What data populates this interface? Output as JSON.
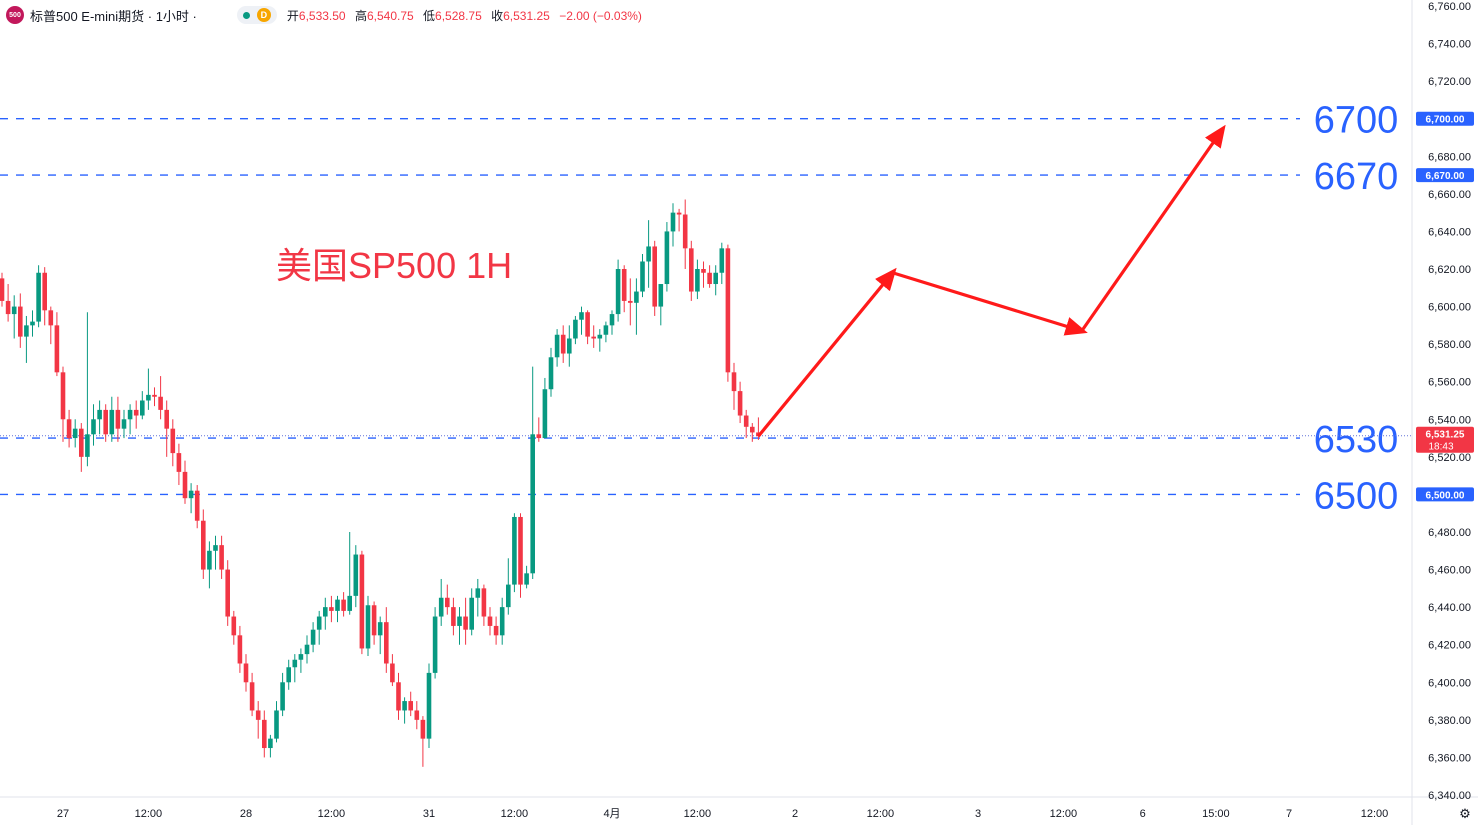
{
  "header": {
    "logo_text": "500",
    "symbol": "标普500 E-mini期货 · 1小时 ·",
    "mode_badge": "D",
    "open_label": "开",
    "open": "6,533.50",
    "high_label": "高",
    "high": "6,540.75",
    "low_label": "低",
    "low": "6,528.75",
    "close_label": "收",
    "close": "6,531.25",
    "change": "−2.00 (−0.03%)"
  },
  "colors": {
    "up": "#089981",
    "down": "#f23645",
    "level": "#2962ff",
    "annotation": "#f23645",
    "arrow": "#ff1a1a",
    "current_line": "#6272d8"
  },
  "chart_data": {
    "type": "candlestick",
    "title": "美国SP500 1H",
    "ylim": [
      6340,
      6760
    ],
    "y_ticks": [
      "6,340.00",
      "6,360.00",
      "6,380.00",
      "6,400.00",
      "6,420.00",
      "6,440.00",
      "6,460.00",
      "6,480.00",
      "6,500.00",
      "6,520.00",
      "6,540.00",
      "6,560.00",
      "6,580.00",
      "6,600.00",
      "6,620.00",
      "6,640.00",
      "6,660.00",
      "6,680.00",
      "6,700.00",
      "6,720.00",
      "6,740.00",
      "6,760.00"
    ],
    "x_ticks": [
      {
        "label": "27",
        "slot": 10
      },
      {
        "label": "12:00",
        "slot": 24
      },
      {
        "label": "28",
        "slot": 40
      },
      {
        "label": "12:00",
        "slot": 54
      },
      {
        "label": "31",
        "slot": 70
      },
      {
        "label": "12:00",
        "slot": 84
      },
      {
        "label": "4月",
        "slot": 100
      },
      {
        "label": "12:00",
        "slot": 114
      },
      {
        "label": "2",
        "slot": 130
      },
      {
        "label": "12:00",
        "slot": 144
      },
      {
        "label": "3",
        "slot": 160
      },
      {
        "label": "12:00",
        "slot": 174
      },
      {
        "label": "6",
        "slot": 187
      },
      {
        "label": "15:00",
        "slot": 199
      },
      {
        "label": "7",
        "slot": 211
      },
      {
        "label": "12:00",
        "slot": 225
      }
    ],
    "candles": [
      [
        6615,
        6618,
        6600,
        6603
      ],
      [
        6603,
        6612,
        6592,
        6596
      ],
      [
        6596,
        6606,
        6583,
        6600
      ],
      [
        6600,
        6607,
        6578,
        6584
      ],
      [
        6584,
        6595,
        6570,
        6590
      ],
      [
        6590,
        6598,
        6584,
        6592
      ],
      [
        6592,
        6622,
        6589,
        6618
      ],
      [
        6618,
        6621,
        6590,
        6598
      ],
      [
        6598,
        6600,
        6580,
        6590
      ],
      [
        6590,
        6597,
        6563,
        6565
      ],
      [
        6565,
        6568,
        6528,
        6540
      ],
      [
        6540,
        6545,
        6525,
        6530
      ],
      [
        6530,
        6540,
        6525,
        6535
      ],
      [
        6535,
        6538,
        6512,
        6520
      ],
      [
        6520,
        6597,
        6515,
        6532
      ],
      [
        6532,
        6548,
        6526,
        6540
      ],
      [
        6540,
        6550,
        6532,
        6545
      ],
      [
        6545,
        6548,
        6528,
        6532
      ],
      [
        6532,
        6552,
        6528,
        6545
      ],
      [
        6545,
        6552,
        6528,
        6535
      ],
      [
        6535,
        6545,
        6530,
        6540
      ],
      [
        6540,
        6548,
        6532,
        6545
      ],
      [
        6545,
        6550,
        6535,
        6542
      ],
      [
        6542,
        6555,
        6540,
        6550
      ],
      [
        6550,
        6567,
        6545,
        6553
      ],
      [
        6553,
        6557,
        6547,
        6552
      ],
      [
        6552,
        6563,
        6540,
        6545
      ],
      [
        6545,
        6550,
        6520,
        6535
      ],
      [
        6535,
        6540,
        6515,
        6522
      ],
      [
        6522,
        6527,
        6505,
        6512
      ],
      [
        6512,
        6518,
        6495,
        6498
      ],
      [
        6498,
        6506,
        6490,
        6502
      ],
      [
        6502,
        6505,
        6482,
        6486
      ],
      [
        6486,
        6492,
        6455,
        6460
      ],
      [
        6460,
        6475,
        6450,
        6470
      ],
      [
        6470,
        6478,
        6460,
        6473
      ],
      [
        6473,
        6478,
        6455,
        6460
      ],
      [
        6460,
        6465,
        6430,
        6435
      ],
      [
        6435,
        6438,
        6420,
        6425
      ],
      [
        6425,
        6430,
        6405,
        6410
      ],
      [
        6410,
        6415,
        6395,
        6400
      ],
      [
        6400,
        6405,
        6382,
        6385
      ],
      [
        6385,
        6390,
        6370,
        6380
      ],
      [
        6380,
        6385,
        6360,
        6365
      ],
      [
        6365,
        6372,
        6360,
        6370
      ],
      [
        6370,
        6390,
        6368,
        6385
      ],
      [
        6385,
        6405,
        6382,
        6400
      ],
      [
        6400,
        6412,
        6396,
        6408
      ],
      [
        6408,
        6415,
        6400,
        6412
      ],
      [
        6412,
        6418,
        6405,
        6415
      ],
      [
        6415,
        6425,
        6410,
        6420
      ],
      [
        6420,
        6432,
        6416,
        6428
      ],
      [
        6428,
        6438,
        6420,
        6435
      ],
      [
        6435,
        6445,
        6428,
        6440
      ],
      [
        6440,
        6446,
        6432,
        6438
      ],
      [
        6438,
        6446,
        6432,
        6444
      ],
      [
        6444,
        6448,
        6435,
        6438
      ],
      [
        6438,
        6480,
        6436,
        6446
      ],
      [
        6446,
        6473,
        6440,
        6468
      ],
      [
        6468,
        6470,
        6415,
        6418
      ],
      [
        6418,
        6446,
        6414,
        6441
      ],
      [
        6441,
        6443,
        6420,
        6425
      ],
      [
        6425,
        6435,
        6415,
        6432
      ],
      [
        6432,
        6440,
        6405,
        6410
      ],
      [
        6410,
        6415,
        6398,
        6400
      ],
      [
        6400,
        6405,
        6380,
        6385
      ],
      [
        6385,
        6392,
        6378,
        6390
      ],
      [
        6390,
        6395,
        6382,
        6385
      ],
      [
        6385,
        6390,
        6375,
        6380
      ],
      [
        6380,
        6382,
        6355,
        6370
      ],
      [
        6370,
        6410,
        6365,
        6405
      ],
      [
        6405,
        6440,
        6402,
        6435
      ],
      [
        6435,
        6455,
        6430,
        6445
      ],
      [
        6445,
        6452,
        6436,
        6440
      ],
      [
        6440,
        6445,
        6425,
        6430
      ],
      [
        6430,
        6440,
        6420,
        6435
      ],
      [
        6435,
        6445,
        6420,
        6428
      ],
      [
        6428,
        6450,
        6425,
        6445
      ],
      [
        6445,
        6455,
        6435,
        6450
      ],
      [
        6450,
        6452,
        6430,
        6435
      ],
      [
        6435,
        6440,
        6425,
        6430
      ],
      [
        6430,
        6435,
        6420,
        6425
      ],
      [
        6425,
        6445,
        6420,
        6440
      ],
      [
        6440,
        6466,
        6436,
        6452
      ],
      [
        6452,
        6490,
        6448,
        6488
      ],
      [
        6488,
        6490,
        6445,
        6452
      ],
      [
        6452,
        6462,
        6450,
        6458
      ],
      [
        6458,
        6568,
        6455,
        6532
      ],
      [
        6532,
        6541,
        6528,
        6530
      ],
      [
        6530,
        6562,
        6530,
        6556
      ],
      [
        6556,
        6578,
        6552,
        6573
      ],
      [
        6573,
        6588,
        6568,
        6585
      ],
      [
        6585,
        6590,
        6570,
        6575
      ],
      [
        6575,
        6590,
        6568,
        6583
      ],
      [
        6583,
        6595,
        6580,
        6593
      ],
      [
        6593,
        6600,
        6585,
        6597
      ],
      [
        6597,
        6598,
        6580,
        6584
      ],
      [
        6584,
        6590,
        6578,
        6583
      ],
      [
        6583,
        6588,
        6576,
        6585
      ],
      [
        6585,
        6592,
        6581,
        6590
      ],
      [
        6590,
        6598,
        6585,
        6596
      ],
      [
        6596,
        6625,
        6592,
        6620
      ],
      [
        6620,
        6622,
        6597,
        6603
      ],
      [
        6603,
        6615,
        6590,
        6602
      ],
      [
        6602,
        6615,
        6585,
        6608
      ],
      [
        6608,
        6628,
        6605,
        6624
      ],
      [
        6624,
        6646,
        6610,
        6632
      ],
      [
        6632,
        6635,
        6595,
        6600
      ],
      [
        6600,
        6612,
        6590,
        6612
      ],
      [
        6612,
        6645,
        6608,
        6640
      ],
      [
        6640,
        6655,
        6632,
        6650
      ],
      [
        6650,
        6652,
        6640,
        6649
      ],
      [
        6649,
        6657,
        6620,
        6631
      ],
      [
        6631,
        6635,
        6603,
        6608
      ],
      [
        6608,
        6625,
        6604,
        6620
      ],
      [
        6620,
        6624,
        6610,
        6618
      ],
      [
        6618,
        6622,
        6610,
        6612
      ],
      [
        6612,
        6622,
        6606,
        6618
      ],
      [
        6618,
        6634,
        6612,
        6631
      ],
      [
        6631,
        6633,
        6560,
        6565
      ],
      [
        6565,
        6570,
        6545,
        6555
      ],
      [
        6555,
        6560,
        6538,
        6542
      ],
      [
        6542,
        6545,
        6530,
        6536
      ],
      [
        6536,
        6538,
        6528,
        6533
      ],
      [
        6533,
        6541,
        6529,
        6531
      ]
    ],
    "levels": [
      {
        "value": 6700,
        "label": "6700",
        "tag": "6,700.00"
      },
      {
        "value": 6670,
        "label": "6670",
        "tag": "6,670.00"
      },
      {
        "value": 6530,
        "label": "6530",
        "tag": "6,530.00"
      },
      {
        "value": 6500,
        "label": "6500",
        "tag": "6,500.00"
      }
    ],
    "current_price": {
      "value": 6531.25,
      "tag": "6,531.25",
      "countdown": "18:43"
    },
    "projection": [
      {
        "slot": 124,
        "price": 6531
      },
      {
        "slot": 146,
        "price": 6618
      },
      {
        "slot": 177,
        "price": 6587
      },
      {
        "slot": 200,
        "price": 6694
      }
    ]
  }
}
